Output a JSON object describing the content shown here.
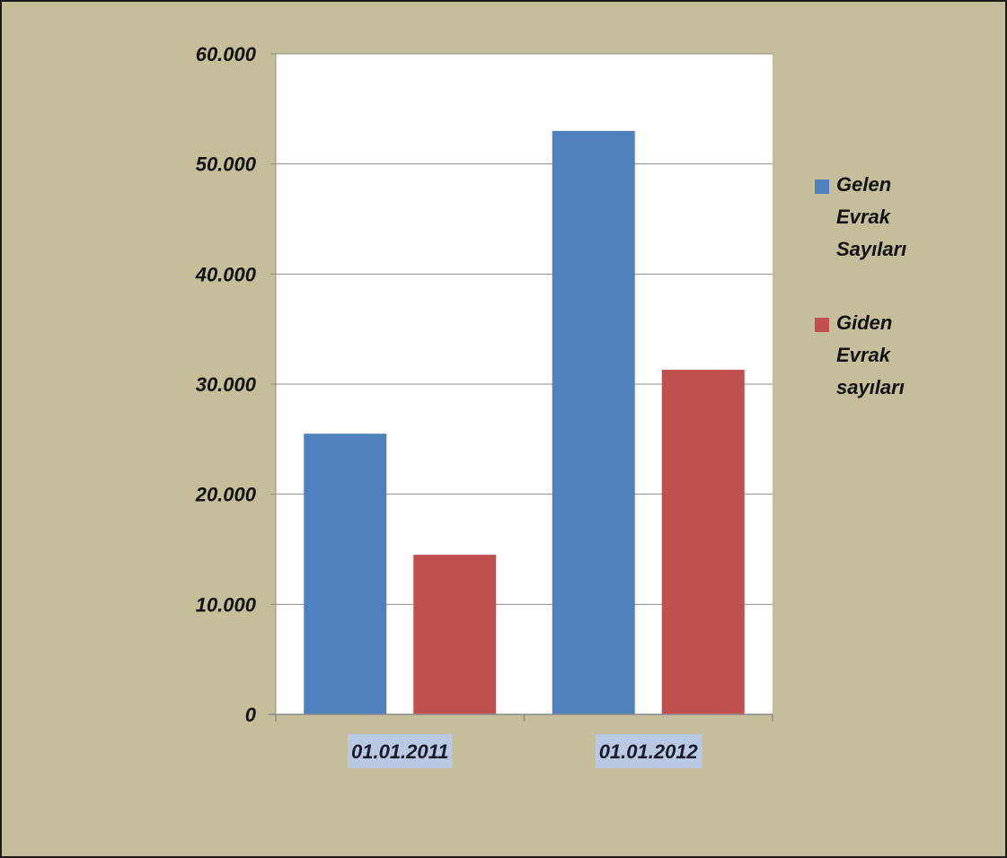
{
  "colors": {
    "frame_background": "#c6bd9b",
    "plot_background": "#ffffff",
    "gridline": "#8c8c8c",
    "axis": "#8c8c8c"
  },
  "chart_data": {
    "type": "bar",
    "title": "",
    "xlabel": "",
    "ylabel": "",
    "categories": [
      "01.01.2011",
      "01.01.2012"
    ],
    "series": [
      {
        "name": "Gelen Evrak Sayıları",
        "color": "#4f81bd",
        "values": [
          25500,
          53000
        ]
      },
      {
        "name": "Giden Evrak sayıları",
        "color": "#c0504d",
        "values": [
          14500,
          31300
        ]
      }
    ],
    "ylim": [
      0,
      60000
    ],
    "yticks": [
      0,
      10000,
      20000,
      30000,
      40000,
      50000,
      60000
    ],
    "ytick_labels": [
      "0",
      "10.000",
      "20.000",
      "30.000",
      "40.000",
      "50.000",
      "60.000"
    ],
    "grid": true,
    "legend_position": "right"
  }
}
